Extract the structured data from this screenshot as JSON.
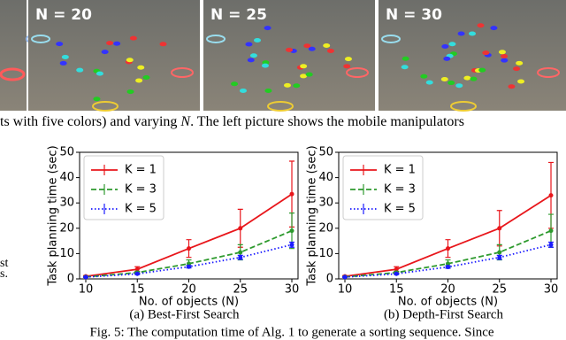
{
  "images": [
    {
      "label": "N = 20"
    },
    {
      "label": "N = 25"
    },
    {
      "label": "N = 30"
    }
  ],
  "text_line": [
    "ts with five colors) and varying ",
    "N",
    ". The left picture shows the mobile manipulators"
  ],
  "margin_text": [
    "st",
    "s."
  ],
  "chart_data": [
    {
      "type": "line",
      "caption": "(a)  Best-First Search",
      "xlabel": "No. of objects (N)",
      "ylabel": "Task planning time (sec)",
      "x": [
        10,
        15,
        20,
        25,
        30
      ],
      "xlim": [
        9.4,
        30.6
      ],
      "xticks": [
        10,
        15,
        20,
        25,
        30
      ],
      "ylim": [
        0,
        50
      ],
      "yticks": [
        0,
        10,
        20,
        30,
        40,
        50
      ],
      "legend": "upper left",
      "series": [
        {
          "name": "K = 1",
          "color": "#e8161b",
          "linestyle": "solid",
          "values": [
            1,
            3.8,
            12,
            20,
            33.5
          ],
          "errors": [
            0.3,
            1,
            3.5,
            7.5,
            13
          ]
        },
        {
          "name": "K = 3",
          "color": "#2e9a2e",
          "linestyle": "dashed",
          "values": [
            0.8,
            2.5,
            6,
            10.5,
            19
          ],
          "errors": [
            0.2,
            0.5,
            1.5,
            3,
            7
          ]
        },
        {
          "name": "K = 5",
          "color": "#1a1aff",
          "linestyle": "dotted",
          "values": [
            0.7,
            2,
            4.8,
            8.5,
            13.5
          ],
          "errors": [
            0.1,
            0.3,
            0.5,
            0.8,
            1
          ]
        }
      ]
    },
    {
      "type": "line",
      "caption": "(b)  Depth-First Search",
      "xlabel": "No. of objects (N)",
      "ylabel": "Task planning time (sec)",
      "x": [
        10,
        15,
        20,
        25,
        30
      ],
      "xlim": [
        9.4,
        30.6
      ],
      "xticks": [
        10,
        15,
        20,
        25,
        30
      ],
      "ylim": [
        0,
        50
      ],
      "yticks": [
        0,
        10,
        20,
        30,
        40,
        50
      ],
      "legend": "upper left",
      "series": [
        {
          "name": "K = 1",
          "color": "#e8161b",
          "linestyle": "solid",
          "values": [
            1,
            3.8,
            12,
            20,
            33
          ],
          "errors": [
            0.3,
            1,
            3.5,
            7,
            13
          ]
        },
        {
          "name": "K = 3",
          "color": "#2e9a2e",
          "linestyle": "dashed",
          "values": [
            0.8,
            2.5,
            6,
            10.5,
            19
          ],
          "errors": [
            0.2,
            0.5,
            1.5,
            3,
            6.5
          ]
        },
        {
          "name": "K = 5",
          "color": "#1a1aff",
          "linestyle": "dotted",
          "values": [
            0.7,
            2,
            4.7,
            8.5,
            13.5
          ],
          "errors": [
            0.1,
            0.3,
            0.5,
            0.8,
            1
          ]
        }
      ]
    }
  ],
  "figure_caption": "Fig. 5: The computation time of Alg. 1 to generate a sorting sequence. Since"
}
